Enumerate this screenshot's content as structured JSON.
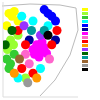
{
  "chart_data": {
    "type": "scatter",
    "xlim": [
      0,
      100
    ],
    "ylim": [
      0,
      100
    ],
    "tick_labels": false,
    "grid": false,
    "legend": "right",
    "series": [
      {
        "color": "#ffff00",
        "x": [
          8,
          12,
          15,
          20,
          5
        ],
        "y": [
          88,
          85,
          90,
          80,
          75
        ]
      },
      {
        "color": "#99ff33",
        "x": [
          10,
          14,
          6,
          20,
          30
        ],
        "y": [
          60,
          55,
          50,
          65,
          20
        ]
      },
      {
        "color": "#33cc33",
        "x": [
          5,
          10,
          15,
          8
        ],
        "y": [
          40,
          35,
          45,
          30
        ]
      },
      {
        "color": "#00ffff",
        "x": [
          25,
          40,
          60,
          50,
          20
        ],
        "y": [
          85,
          80,
          75,
          30,
          20
        ]
      },
      {
        "color": "#0000ff",
        "x": [
          60,
          65,
          70,
          55,
          45
        ],
        "y": [
          88,
          85,
          80,
          92,
          50
        ]
      },
      {
        "color": "#000099",
        "x": [
          35,
          70
        ],
        "y": [
          60,
          60
        ]
      },
      {
        "color": "#ff00ff",
        "x": [
          40,
          45,
          50,
          55,
          48,
          42,
          58,
          52
        ],
        "y": [
          50,
          55,
          48,
          52,
          42,
          45,
          46,
          58
        ]
      },
      {
        "color": "#ff66cc",
        "x": [
          30,
          62,
          35
        ],
        "y": [
          45,
          40,
          35
        ]
      },
      {
        "color": "#ff0000",
        "x": [
          20,
          30,
          65,
          25,
          40,
          72
        ],
        "y": [
          70,
          55,
          55,
          30,
          25,
          70
        ]
      },
      {
        "color": "#ff9900",
        "x": [
          15,
          45
        ],
        "y": [
          25,
          20
        ]
      },
      {
        "color": "#9933ff",
        "x": [
          28,
          50
        ],
        "y": [
          75,
          65
        ]
      },
      {
        "color": "#006600",
        "x": [
          3,
          12
        ],
        "y": [
          55,
          70
        ]
      },
      {
        "color": "#009999",
        "x": [
          38,
          55
        ],
        "y": [
          70,
          70
        ]
      },
      {
        "color": "#996633",
        "x": [
          22
        ],
        "y": [
          40
        ]
      },
      {
        "color": "#999999",
        "x": [
          33
        ],
        "y": [
          15
        ]
      },
      {
        "color": "#000000",
        "x": [
          60
        ],
        "y": [
          65
        ]
      }
    ]
  }
}
